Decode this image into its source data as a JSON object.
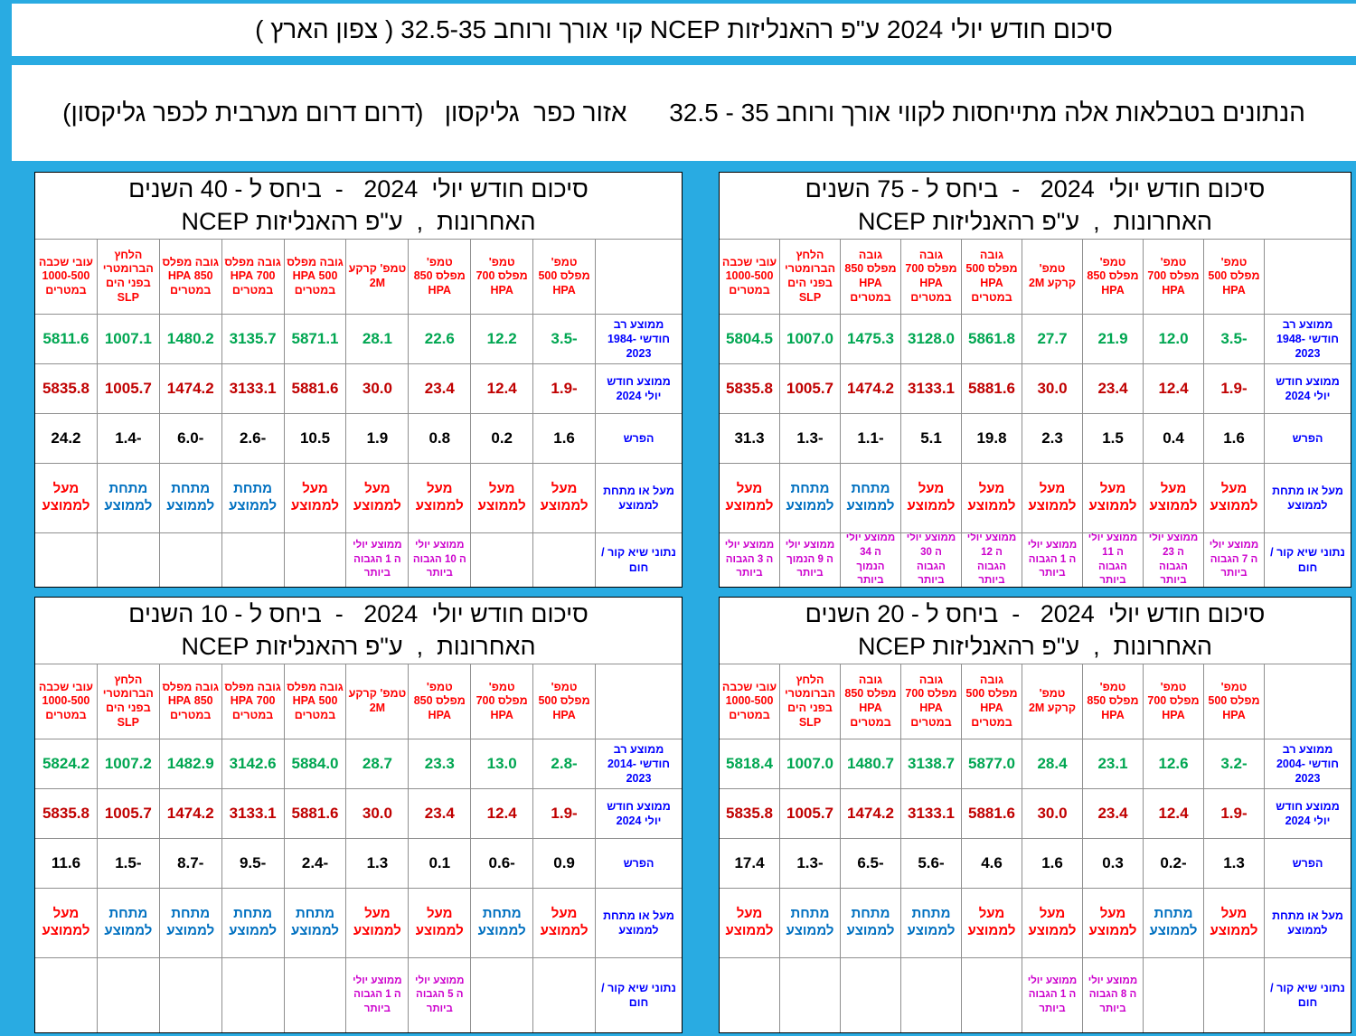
{
  "page": {
    "title": "סיכום חודש יולי 2024 ע\"פ רהאנליזות NCEP קוי אורך ורוחב 32.5-35 ( צפון הארץ )",
    "subtitle": "הנתונים בטבלאות אלה מתייחסות לקווי אורך ורוחב 35 - 32.5      אזור כפר  גליקסון   (דרום דרום מערבית לכפר גליקסון)"
  },
  "colors": {
    "frame": "#29ABE2",
    "header_red": "#FF0000",
    "hist_green": "#00A651",
    "current_red": "#C00000",
    "label_blue": "#0000FF",
    "below_blue": "#0070C0",
    "record_magenta": "#CC00CC"
  },
  "columns": [
    "טמפ' מפלס 500 HPA",
    "טמפ' מפלס 700 HPA",
    "טמפ' מפלס 850 HPA",
    "טמפ' קרקע 2M",
    "גובה מפלס 500 HPA במטרים",
    "גובה מפלס 700 HPA במטרים",
    "גובה מפלס 850 HPA במטרים",
    "הלחץ הברומטרי בפני הים SLP",
    "עובי שכבה 1000-500 במטרים"
  ],
  "row_labels": {
    "avg_2024": "ממוצע חודש יולי 2024",
    "diff": "הפרש",
    "above_below": "מעל או מתחת לממוצע",
    "records": "נתוני שיא קור / חום"
  },
  "tables": [
    {
      "id": "years-40",
      "title": "סיכום חודש יולי  2024   -  ביחס ל - 40 השנים האחרונות  ,  ע\"פ רהאנליזות NCEP",
      "avg_hist_label": "ממוצע רב חודשי 1984-2023",
      "avg_hist": [
        "-3.5",
        "12.2",
        "22.6",
        "28.1",
        "5871.1",
        "3135.7",
        "1480.2",
        "1007.1",
        "5811.6"
      ],
      "avg_2024": [
        "-1.9",
        "12.4",
        "23.4",
        "30.0",
        "5881.6",
        "3133.1",
        "1474.2",
        "1005.7",
        "5835.8"
      ],
      "diff": [
        "1.6",
        "0.2",
        "0.8",
        "1.9",
        "10.5",
        "-2.6",
        "-6.0",
        "-1.4",
        "24.2"
      ],
      "above_below": [
        "מעל לממוצע",
        "מעל לממוצע",
        "מעל לממוצע",
        "מעל לממוצע",
        "מעל לממוצע",
        "מתחת לממוצע",
        "מתחת לממוצע",
        "מתחת לממוצע",
        "מעל לממוצע"
      ],
      "records": [
        "",
        "",
        "ממוצע יולי ה 10 הגבוה ביותר",
        "ממוצע יולי ה 1 הגבוה ביותר",
        "",
        "",
        "",
        "",
        ""
      ]
    },
    {
      "id": "years-75",
      "title": "סיכום חודש יולי  2024   -  ביחס ל - 75 השנים האחרונות  ,  ע\"פ רהאנליזות NCEP",
      "avg_hist_label": "ממוצע רב חודשי 1948-2023",
      "avg_hist": [
        "-3.5",
        "12.0",
        "21.9",
        "27.7",
        "5861.8",
        "3128.0",
        "1475.3",
        "1007.0",
        "5804.5"
      ],
      "avg_2024": [
        "-1.9",
        "12.4",
        "23.4",
        "30.0",
        "5881.6",
        "3133.1",
        "1474.2",
        "1005.7",
        "5835.8"
      ],
      "diff": [
        "1.6",
        "0.4",
        "1.5",
        "2.3",
        "19.8",
        "5.1",
        "-1.1",
        "-1.3",
        "31.3"
      ],
      "above_below": [
        "מעל לממוצע",
        "מעל לממוצע",
        "מעל לממוצע",
        "מעל לממוצע",
        "מעל לממוצע",
        "מעל לממוצע",
        "מתחת לממוצע",
        "מתחת לממוצע",
        "מעל לממוצע"
      ],
      "records": [
        "ממוצע יולי ה 7 הגבוה ביותר",
        "ממוצע יולי ה 23 הגבוה ביותר",
        "ממוצע יולי ה 11 הגבוה ביותר",
        "ממוצע יולי ה 1 הגבוה ביותר",
        "ממוצע יולי ה 12 הגבוה ביותר",
        "ממוצע יולי ה 30 הגבוה ביותר",
        "ממוצע יולי ה 34 הנמוך ביותר",
        "ממוצע יולי ה 9 הנמוך ביותר",
        "ממוצע יולי ה 3 הגבוה ביותר"
      ]
    },
    {
      "id": "years-10",
      "title": "סיכום חודש יולי  2024   -  ביחס ל - 10 השנים האחרונות  ,  ע\"פ רהאנליזות NCEP",
      "avg_hist_label": "ממוצע רב חודשי 2014-2023",
      "avg_hist": [
        "-2.8",
        "13.0",
        "23.3",
        "28.7",
        "5884.0",
        "3142.6",
        "1482.9",
        "1007.2",
        "5824.2"
      ],
      "avg_2024": [
        "-1.9",
        "12.4",
        "23.4",
        "30.0",
        "5881.6",
        "3133.1",
        "1474.2",
        "1005.7",
        "5835.8"
      ],
      "diff": [
        "0.9",
        "-0.6",
        "0.1",
        "1.3",
        "-2.4",
        "-9.5",
        "-8.7",
        "-1.5",
        "11.6"
      ],
      "above_below": [
        "מעל לממוצע",
        "מתחת לממוצע",
        "מעל לממוצע",
        "מעל לממוצע",
        "מתחת לממוצע",
        "מתחת לממוצע",
        "מתחת לממוצע",
        "מתחת לממוצע",
        "מעל לממוצע"
      ],
      "records": [
        "",
        "",
        "ממוצע יולי ה 5 הגבוה ביותר",
        "ממוצע יולי ה 1 הגבוה ביותר",
        "",
        "",
        "",
        "",
        ""
      ]
    },
    {
      "id": "years-20",
      "title": "סיכום חודש יולי  2024   -  ביחס ל - 20 השנים האחרונות  ,  ע\"פ רהאנליזות NCEP",
      "avg_hist_label": "ממוצע רב חודשי 2004-2023",
      "avg_hist": [
        "-3.2",
        "12.6",
        "23.1",
        "28.4",
        "5877.0",
        "3138.7",
        "1480.7",
        "1007.0",
        "5818.4"
      ],
      "avg_2024": [
        "-1.9",
        "12.4",
        "23.4",
        "30.0",
        "5881.6",
        "3133.1",
        "1474.2",
        "1005.7",
        "5835.8"
      ],
      "diff": [
        "1.3",
        "-0.2",
        "0.3",
        "1.6",
        "4.6",
        "-5.6",
        "-6.5",
        "-1.3",
        "17.4"
      ],
      "above_below": [
        "מעל לממוצע",
        "מתחת לממוצע",
        "מעל לממוצע",
        "מעל לממוצע",
        "מעל לממוצע",
        "מתחת לממוצע",
        "מתחת לממוצע",
        "מתחת לממוצע",
        "מעל לממוצע"
      ],
      "records": [
        "",
        "",
        "ממוצע יולי ה 8 הגבוה ביותר",
        "ממוצע יולי ה 1 הגבוה ביותר",
        "",
        "",
        "",
        "",
        ""
      ]
    }
  ]
}
